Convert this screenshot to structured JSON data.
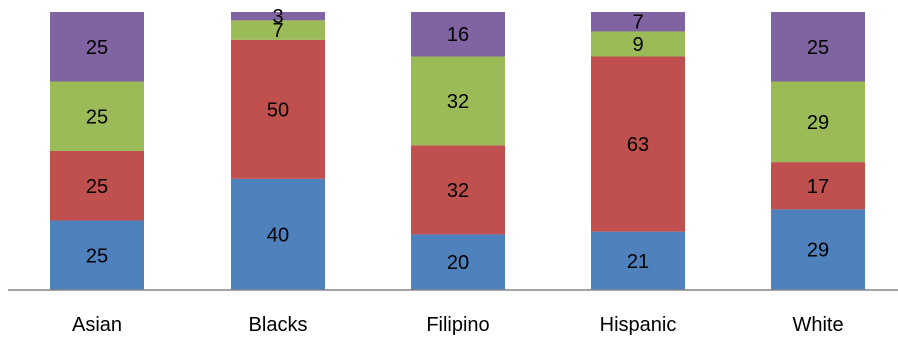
{
  "chart_data": {
    "type": "bar",
    "stacked": true,
    "categories": [
      "Asian",
      "Blacks",
      "Filipino",
      "Hispanic",
      "White"
    ],
    "series": [
      {
        "values": [
          25,
          40,
          20,
          21,
          29
        ],
        "color": "#4F81BD"
      },
      {
        "values": [
          25,
          50,
          32,
          63,
          17
        ],
        "color": "#C0504D"
      },
      {
        "values": [
          25,
          7,
          32,
          9,
          29
        ],
        "color": "#9BBB59"
      },
      {
        "values": [
          25,
          3,
          16,
          7,
          25
        ],
        "color": "#8064A2"
      }
    ],
    "ylim": [
      0,
      100
    ],
    "grid": false,
    "legend": "none",
    "data_labels": true
  }
}
